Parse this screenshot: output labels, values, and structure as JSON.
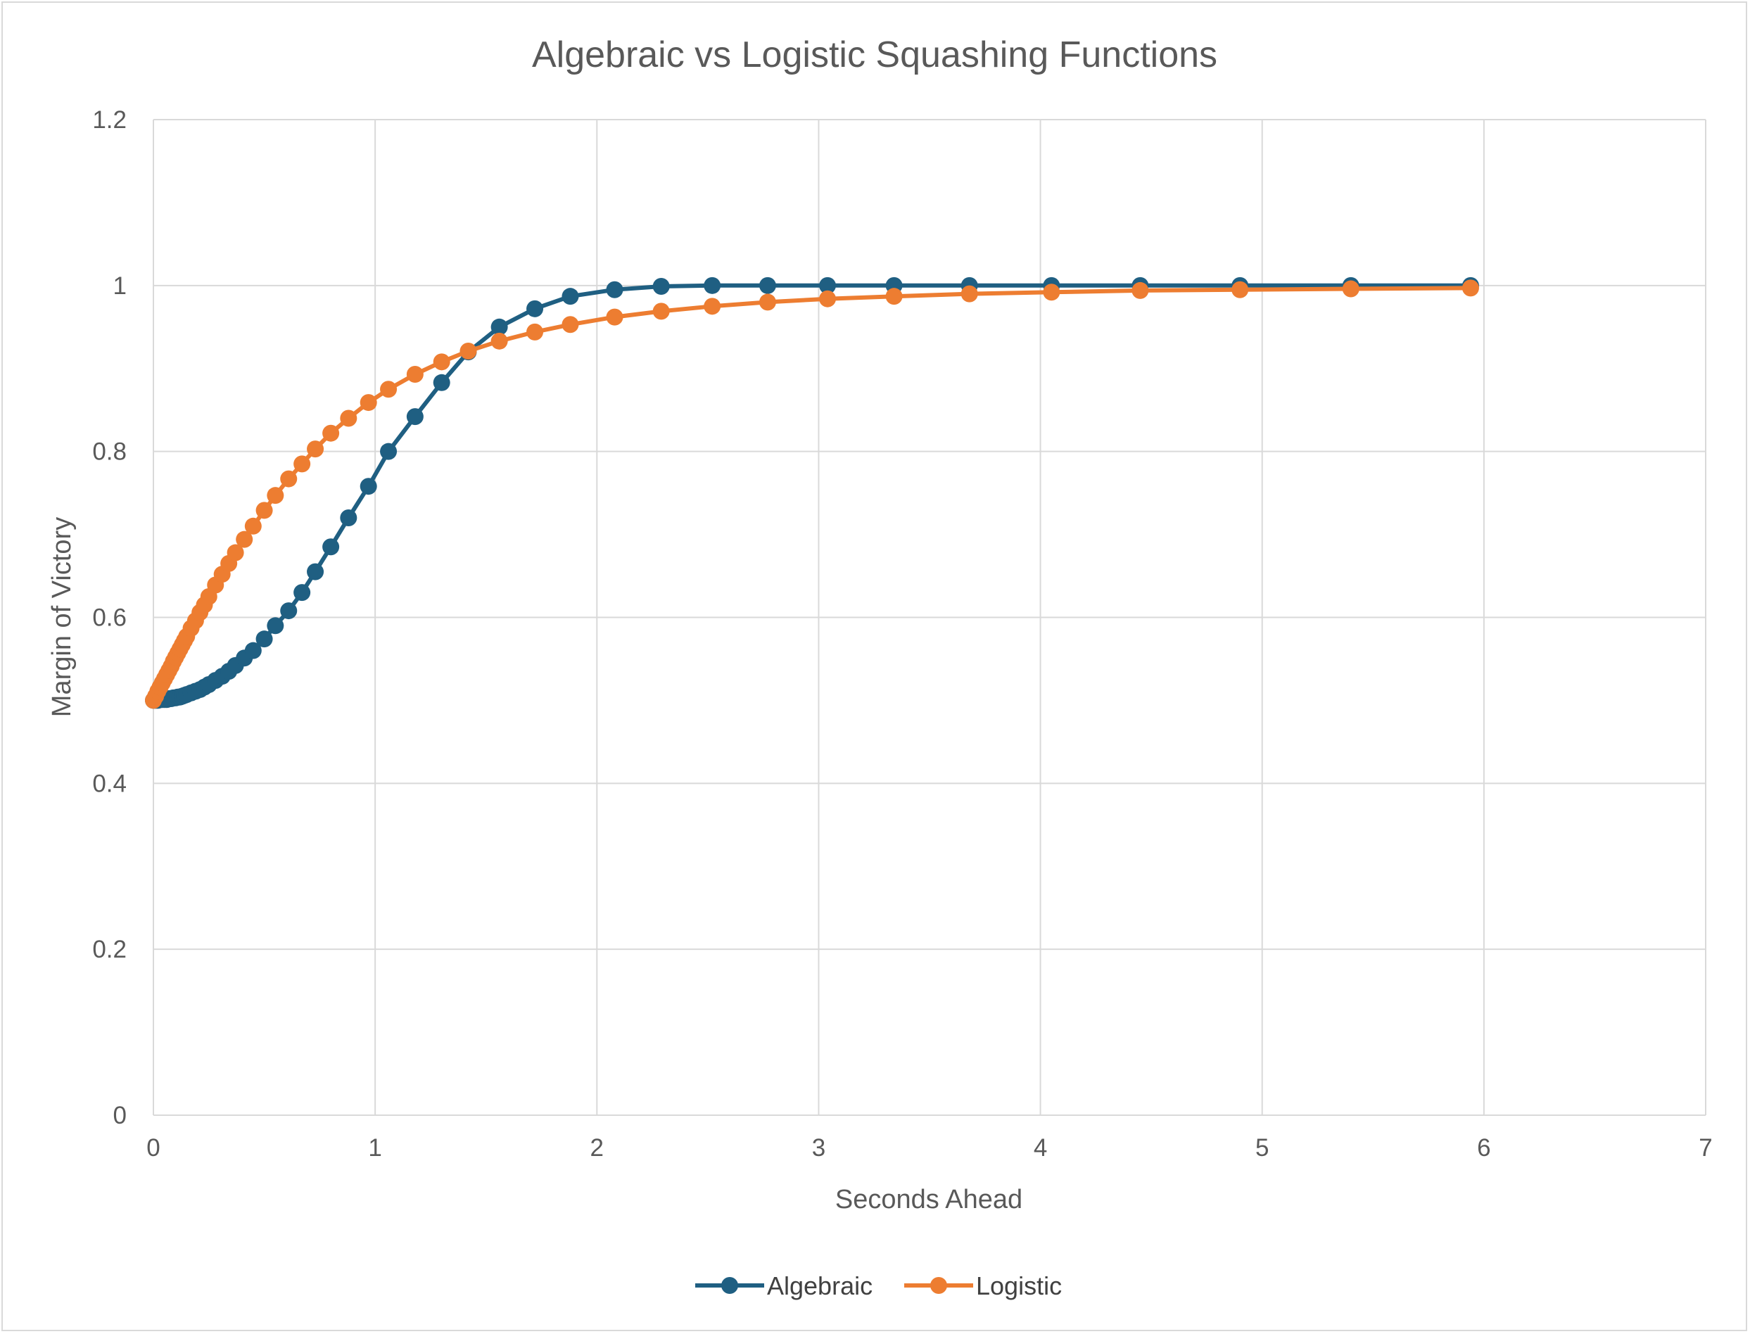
{
  "chart_data": {
    "type": "scatter",
    "title": "Algebraic vs Logistic Squashing Functions",
    "xlabel": "Seconds Ahead",
    "ylabel": "Margin of Victory",
    "xlim": [
      0,
      7
    ],
    "ylim": [
      0,
      1.2
    ],
    "xticks": [
      0,
      1,
      2,
      3,
      4,
      5,
      6,
      7
    ],
    "yticks": [
      0,
      0.2,
      0.4,
      0.6,
      0.8,
      1,
      1.2
    ],
    "xtick_labels": [
      "0",
      "1",
      "2",
      "3",
      "4",
      "5",
      "6",
      "7"
    ],
    "ytick_labels": [
      "0",
      "0.2",
      "0.4",
      "0.6",
      "0.8",
      "1",
      "1.2"
    ],
    "grid": true,
    "legend_position": "bottom",
    "series": [
      {
        "name": "Algebraic",
        "color": "#1f5f82",
        "marker": "circle",
        "x": [
          0,
          0.01,
          0.02,
          0.03,
          0.04,
          0.05,
          0.06,
          0.07,
          0.08,
          0.09,
          0.1,
          0.11,
          0.12,
          0.13,
          0.14,
          0.15,
          0.17,
          0.19,
          0.21,
          0.23,
          0.25,
          0.28,
          0.31,
          0.34,
          0.37,
          0.41,
          0.45,
          0.5,
          0.55,
          0.61,
          0.67,
          0.73,
          0.8,
          0.88,
          0.97,
          1.06,
          1.18,
          1.3,
          1.42,
          1.56,
          1.72,
          1.88,
          2.08,
          2.29,
          2.52,
          2.77,
          3.04,
          3.34,
          3.68,
          4.05,
          4.45,
          4.9,
          5.4,
          5.94
        ],
        "y": [
          0.5,
          0.5,
          0.5,
          0.501,
          0.501,
          0.501,
          0.501,
          0.502,
          0.502,
          0.503,
          0.503,
          0.504,
          0.504,
          0.505,
          0.506,
          0.507,
          0.509,
          0.511,
          0.513,
          0.516,
          0.519,
          0.524,
          0.529,
          0.535,
          0.542,
          0.551,
          0.56,
          0.574,
          0.59,
          0.608,
          0.63,
          0.655,
          0.685,
          0.72,
          0.758,
          0.8,
          0.842,
          0.883,
          0.92,
          0.95,
          0.972,
          0.987,
          0.995,
          0.999,
          1,
          1,
          1,
          1,
          1,
          1,
          1,
          1,
          1,
          1
        ]
      },
      {
        "name": "Logistic",
        "color": "#ed7d31",
        "marker": "circle",
        "x": [
          0,
          0.01,
          0.02,
          0.03,
          0.04,
          0.05,
          0.06,
          0.07,
          0.08,
          0.09,
          0.1,
          0.11,
          0.12,
          0.13,
          0.14,
          0.15,
          0.17,
          0.19,
          0.21,
          0.23,
          0.25,
          0.28,
          0.31,
          0.34,
          0.37,
          0.41,
          0.45,
          0.5,
          0.55,
          0.61,
          0.67,
          0.73,
          0.8,
          0.88,
          0.97,
          1.06,
          1.18,
          1.3,
          1.42,
          1.56,
          1.72,
          1.88,
          2.08,
          2.29,
          2.52,
          2.77,
          3.04,
          3.34,
          3.68,
          4.05,
          4.45,
          4.9,
          5.4,
          5.94
        ],
        "y": [
          0.5,
          0.505,
          0.511,
          0.516,
          0.521,
          0.526,
          0.531,
          0.536,
          0.541,
          0.547,
          0.552,
          0.557,
          0.562,
          0.567,
          0.572,
          0.577,
          0.587,
          0.596,
          0.606,
          0.615,
          0.625,
          0.639,
          0.652,
          0.665,
          0.678,
          0.694,
          0.71,
          0.729,
          0.747,
          0.767,
          0.785,
          0.803,
          0.822,
          0.84,
          0.859,
          0.875,
          0.893,
          0.908,
          0.921,
          0.933,
          0.944,
          0.953,
          0.962,
          0.969,
          0.975,
          0.98,
          0.984,
          0.987,
          0.99,
          0.992,
          0.994,
          0.995,
          0.996,
          0.997
        ]
      }
    ]
  }
}
